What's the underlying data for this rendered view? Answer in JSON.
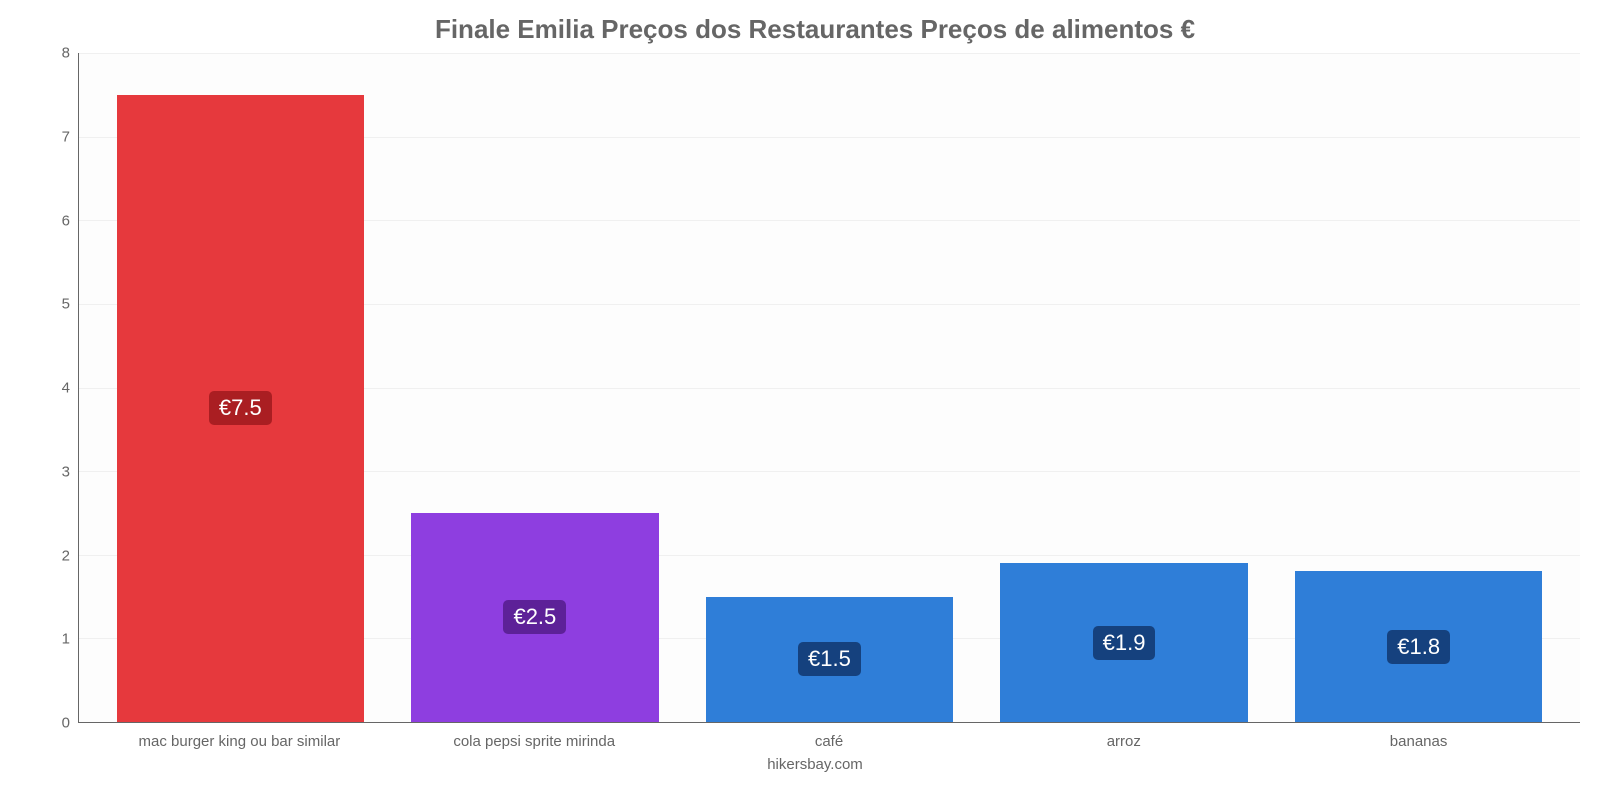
{
  "chart": {
    "type": "bar",
    "title": "Finale Emilia Preços dos Restaurantes Preços de alimentos €",
    "title_fontsize": 26,
    "title_color": "#666666",
    "attribution": "hikersbay.com",
    "attribution_color": "#666666",
    "background_color": "#ffffff",
    "plot_background_color": "#fdfdfd",
    "grid_color": "#f0f0f0",
    "axis_line_color": "#666666",
    "tick_label_color": "#666666",
    "tick_fontsize": 15,
    "y_axis": {
      "min": 0,
      "max": 8,
      "tick_step": 1,
      "ticks": [
        0,
        1,
        2,
        3,
        4,
        5,
        6,
        7,
        8
      ]
    },
    "bars": [
      {
        "category": "mac burger king ou bar similar",
        "value": 7.5,
        "display_label": "€7.5",
        "bar_color": "#e6393d",
        "label_bg": "#aa1e22",
        "label_text_color": "#ffffff"
      },
      {
        "category": "cola pepsi sprite mirinda",
        "value": 2.5,
        "display_label": "€2.5",
        "bar_color": "#8e3ee0",
        "label_bg": "#5d2198",
        "label_text_color": "#ffffff"
      },
      {
        "category": "café",
        "value": 1.5,
        "display_label": "€1.5",
        "bar_color": "#2f7ed8",
        "label_bg": "#15417e",
        "label_text_color": "#ffffff"
      },
      {
        "category": "arroz",
        "value": 1.9,
        "display_label": "€1.9",
        "bar_color": "#2f7ed8",
        "label_bg": "#15417e",
        "label_text_color": "#ffffff"
      },
      {
        "category": "bananas",
        "value": 1.8,
        "display_label": "€1.8",
        "bar_color": "#2f7ed8",
        "label_bg": "#15417e",
        "label_text_color": "#ffffff"
      }
    ],
    "bar_width_ratio": 0.84,
    "bar_label_fontsize": 22
  }
}
